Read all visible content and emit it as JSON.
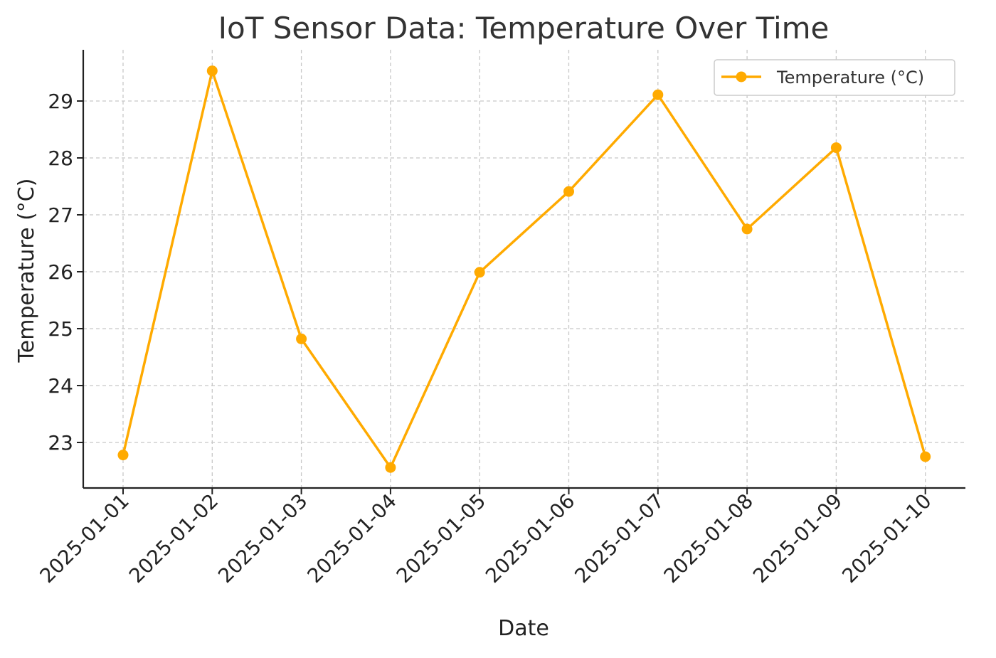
{
  "chart_data": {
    "type": "line",
    "title": "IoT Sensor Data: Temperature Over Time",
    "xlabel": "Date",
    "ylabel": "Temperature (°C)",
    "categories": [
      "2025-01-01",
      "2025-01-02",
      "2025-01-03",
      "2025-01-04",
      "2025-01-05",
      "2025-01-06",
      "2025-01-07",
      "2025-01-08",
      "2025-01-09",
      "2025-01-10"
    ],
    "series": [
      {
        "name": "Temperature (°C)",
        "color": "#FFAA00",
        "values": [
          22.78,
          29.53,
          24.82,
          22.56,
          25.99,
          27.41,
          29.11,
          26.75,
          28.18,
          22.75
        ]
      }
    ],
    "ylim": [
      22.2,
      29.9
    ],
    "yticks": [
      23,
      24,
      25,
      26,
      27,
      28,
      29
    ],
    "grid": true,
    "legend": "top-right"
  }
}
